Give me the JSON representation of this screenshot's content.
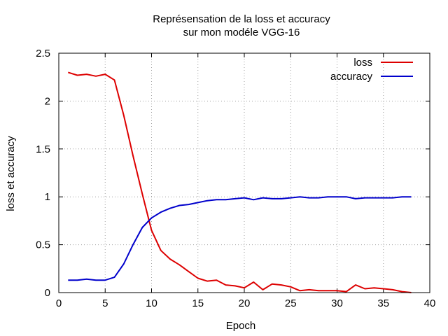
{
  "chart_data": {
    "type": "line",
    "title_line1": "Représensation de la loss et accuracy",
    "title_line2": "sur mon modéle VGG-16",
    "xlabel": "Epoch",
    "ylabel": "loss et accuracy",
    "xlim": [
      0,
      40
    ],
    "ylim": [
      0,
      2.5
    ],
    "xticks": [
      0,
      5,
      10,
      15,
      20,
      25,
      30,
      35,
      40
    ],
    "xtick_labels": [
      "0",
      "5",
      "10",
      "15",
      "20",
      "25",
      "30",
      "35",
      "40"
    ],
    "yticks": [
      0,
      0.5,
      1,
      1.5,
      2,
      2.5
    ],
    "ytick_labels": [
      "0",
      "0.5",
      "1",
      "1.5",
      "2",
      "2.5"
    ],
    "grid": true,
    "legend_position": "top-right",
    "x": [
      1,
      2,
      3,
      4,
      5,
      6,
      7,
      8,
      9,
      10,
      11,
      12,
      13,
      14,
      15,
      16,
      17,
      18,
      19,
      20,
      21,
      22,
      23,
      24,
      25,
      26,
      27,
      28,
      29,
      30,
      31,
      32,
      33,
      34,
      35,
      36,
      37,
      38
    ],
    "series": [
      {
        "name": "loss",
        "color": "#dd0000",
        "values": [
          2.3,
          2.27,
          2.28,
          2.26,
          2.28,
          2.22,
          1.85,
          1.43,
          1.03,
          0.65,
          0.44,
          0.35,
          0.29,
          0.22,
          0.15,
          0.12,
          0.13,
          0.08,
          0.07,
          0.05,
          0.11,
          0.03,
          0.09,
          0.08,
          0.06,
          0.02,
          0.03,
          0.02,
          0.02,
          0.02,
          0.01,
          0.08,
          0.04,
          0.05,
          0.04,
          0.03,
          0.01,
          0.0
        ]
      },
      {
        "name": "accuracy",
        "color": "#0000cc",
        "values": [
          0.13,
          0.13,
          0.14,
          0.13,
          0.13,
          0.16,
          0.3,
          0.5,
          0.68,
          0.78,
          0.84,
          0.88,
          0.91,
          0.92,
          0.94,
          0.96,
          0.97,
          0.97,
          0.98,
          0.99,
          0.97,
          0.99,
          0.98,
          0.98,
          0.99,
          1.0,
          0.99,
          0.99,
          1.0,
          1.0,
          1.0,
          0.98,
          0.99,
          0.99,
          0.99,
          0.99,
          1.0,
          1.0
        ]
      }
    ]
  }
}
